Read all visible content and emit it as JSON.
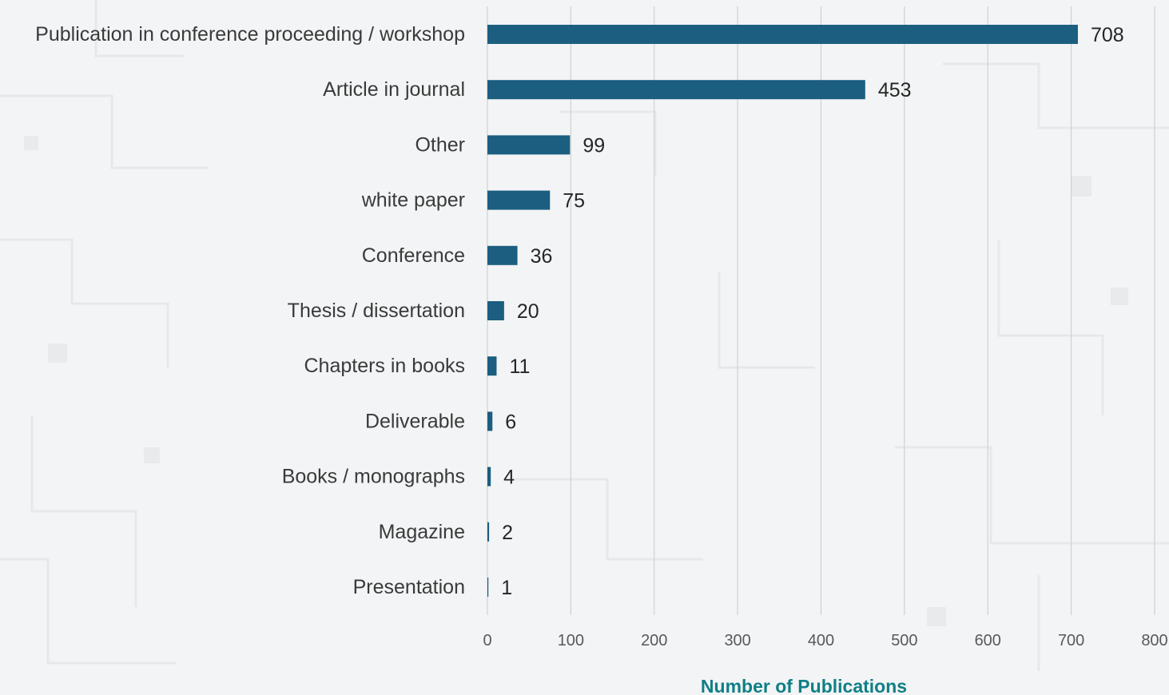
{
  "chart_data": {
    "type": "bar",
    "orientation": "horizontal",
    "categories": [
      "Publication in conference proceeding / workshop",
      "Article in journal",
      "Other",
      "white paper",
      "Conference",
      "Thesis / dissertation",
      "Chapters in books",
      "Deliverable",
      "Books / monographs",
      "Magazine",
      "Presentation"
    ],
    "values": [
      708,
      453,
      99,
      75,
      36,
      20,
      11,
      6,
      4,
      2,
      1
    ],
    "data_labels": [
      "708",
      "453",
      "99",
      "75",
      "36",
      "20",
      "11",
      "6",
      "4",
      "2",
      "1"
    ],
    "xlim": [
      0,
      800
    ],
    "xticks": [
      "0",
      "100",
      "200",
      "300",
      "400",
      "500",
      "600",
      "700",
      "800"
    ],
    "xlabel": "Number of Publications",
    "ylabel": "",
    "title": "",
    "grid": "vertical",
    "legend": "none",
    "colors": {
      "bar": "#1b5e80",
      "grid": "#d0d0d0",
      "axis_title": "#0f7f86",
      "background": "#f3f4f5"
    }
  }
}
